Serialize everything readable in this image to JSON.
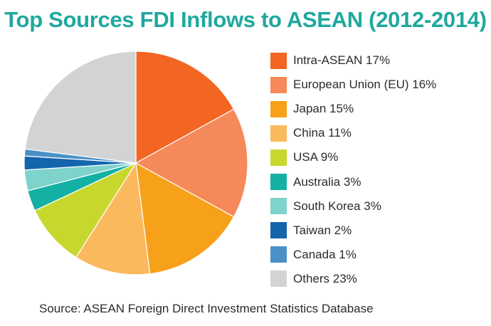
{
  "chart_data": {
    "type": "pie",
    "title": "Top Sources FDI Inflows to ASEAN (2012-2014)",
    "legend_position": "right",
    "slices": [
      {
        "label": "Intra-ASEAN 17%",
        "value": 17,
        "color": "#f26522"
      },
      {
        "label": "European Union (EU) 16%",
        "value": 16,
        "color": "#f6895a"
      },
      {
        "label": "Japan 15%",
        "value": 15,
        "color": "#f7a11a"
      },
      {
        "label": "China 11%",
        "value": 11,
        "color": "#fbb95e"
      },
      {
        "label": "USA 9%",
        "value": 9,
        "color": "#c8d72e"
      },
      {
        "label": "Australia 3%",
        "value": 3,
        "color": "#14b0a4"
      },
      {
        "label": "South Korea 3%",
        "value": 3,
        "color": "#7ed3cb"
      },
      {
        "label": "Taiwan 2%",
        "value": 2,
        "color": "#1565ad"
      },
      {
        "label": "Canada 1%",
        "value": 1,
        "color": "#4a90c8"
      },
      {
        "label": "Others 23%",
        "value": 23,
        "color": "#d1d3d4"
      }
    ]
  },
  "source_note": "Source: ASEAN Foreign Direct Investment Statistics Database"
}
